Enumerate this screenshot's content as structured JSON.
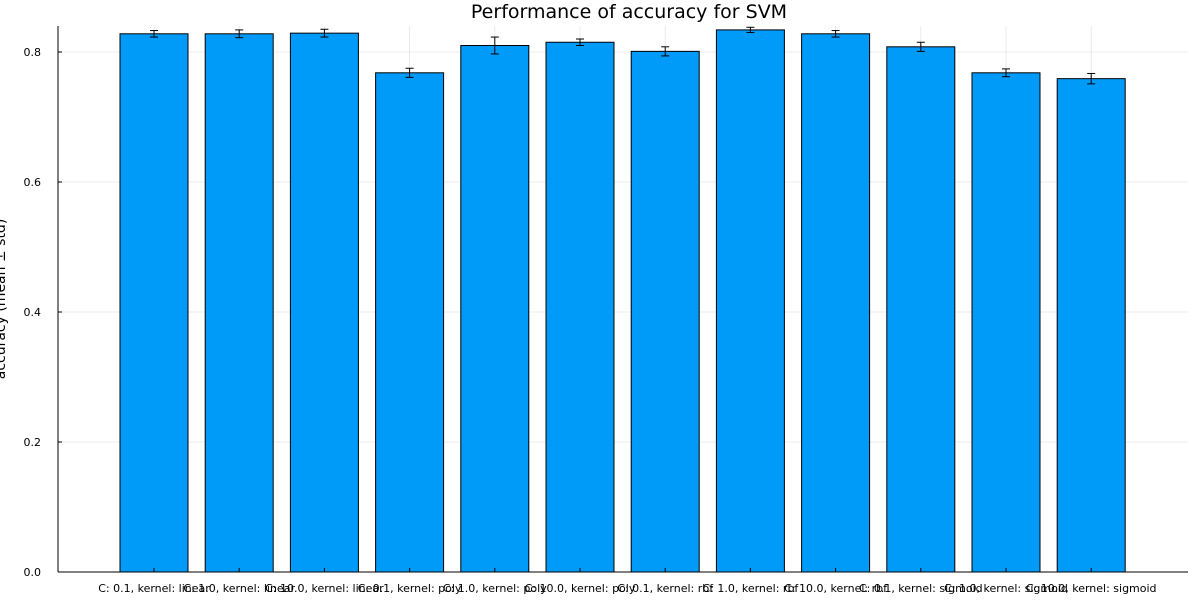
{
  "chart_data": {
    "type": "bar",
    "title": "Performance of accuracy for SVM",
    "xlabel": "",
    "ylabel": "accuracy (mean ± std)",
    "ylim": [
      0,
      0.84
    ],
    "yticks": [
      "0.0",
      "0.2",
      "0.4",
      "0.6",
      "0.8"
    ],
    "grid": true,
    "legend": "none",
    "bar_color": "#009AF9",
    "categories": [
      "C: 0.1, kernel: linear",
      "C: 1.0, kernel: linear",
      "C: 10.0, kernel: linear",
      "C: 0.1, kernel: poly",
      "C: 1.0, kernel: poly",
      "C: 10.0, kernel: poly",
      "C: 0.1, kernel: rbf",
      "C: 1.0, kernel: rbf",
      "C: 10.0, kernel: rbf",
      "C: 0.1, kernel: sigmoid",
      "C: 1.0, kernel: sigmoid",
      "C: 10.0, kernel: sigmoid"
    ],
    "values": [
      0.828,
      0.828,
      0.829,
      0.768,
      0.81,
      0.815,
      0.801,
      0.834,
      0.828,
      0.808,
      0.768,
      0.759
    ],
    "errors": [
      0.005,
      0.006,
      0.006,
      0.007,
      0.013,
      0.005,
      0.007,
      0.004,
      0.005,
      0.007,
      0.006,
      0.008
    ]
  }
}
